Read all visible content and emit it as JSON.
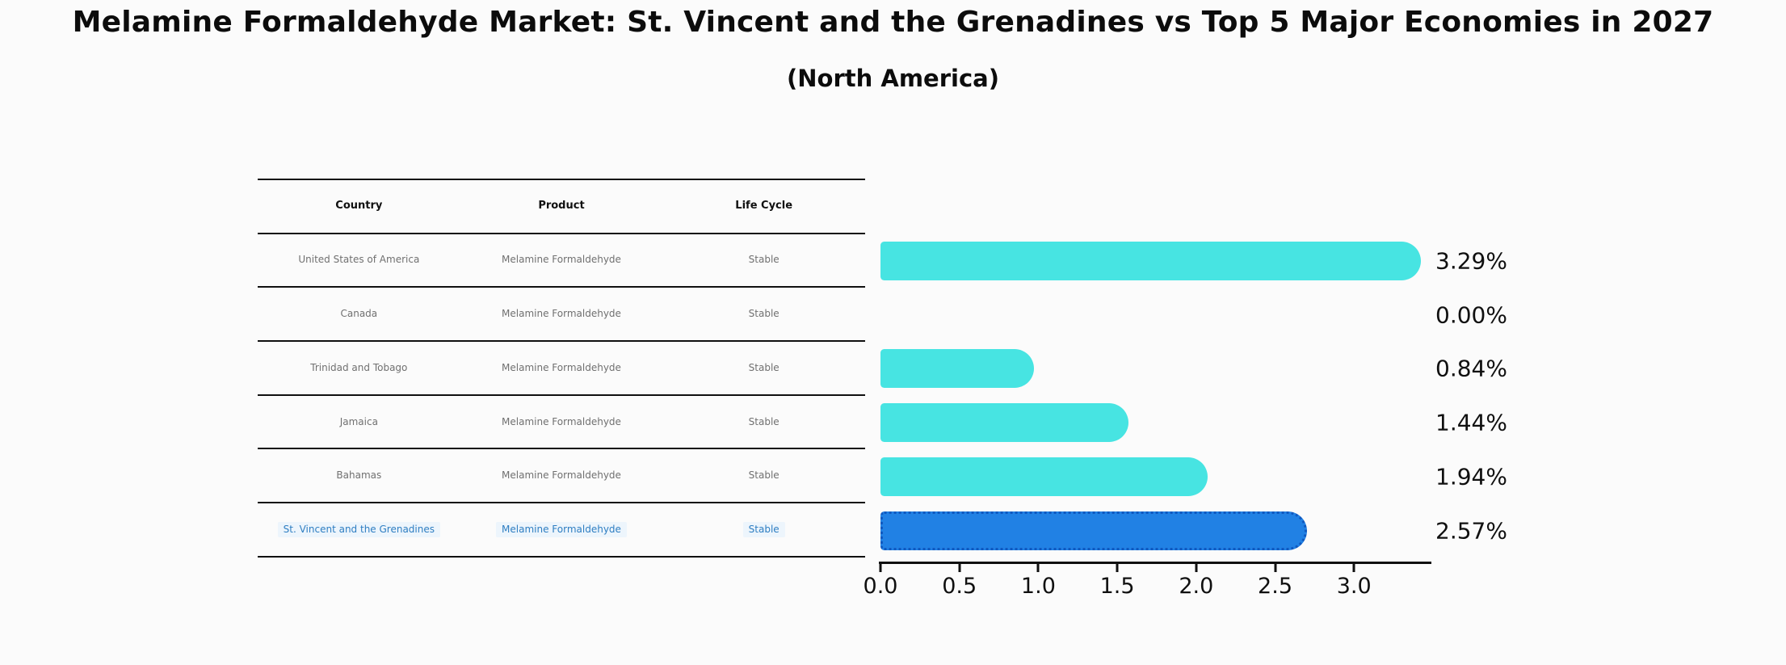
{
  "title": "Melamine Formaldehyde Market: St. Vincent and the Grenadines vs Top 5 Major Economies in 2027",
  "subtitle": "(North America)",
  "table": {
    "headers": [
      "Country",
      "Product",
      "Life Cycle"
    ],
    "rows": [
      {
        "country": "United States of America",
        "product": "Melamine Formaldehyde",
        "life_cycle": "Stable",
        "highlighted": false
      },
      {
        "country": "Canada",
        "product": "Melamine Formaldehyde",
        "life_cycle": "Stable",
        "highlighted": false
      },
      {
        "country": "Trinidad and Tobago",
        "product": "Melamine Formaldehyde",
        "life_cycle": "Stable",
        "highlighted": false
      },
      {
        "country": "Jamaica",
        "product": "Melamine Formaldehyde",
        "life_cycle": "Stable",
        "highlighted": false
      },
      {
        "country": "Bahamas",
        "product": "Melamine Formaldehyde",
        "life_cycle": "Stable",
        "highlighted": false
      },
      {
        "country": "St. Vincent and the Grenadines",
        "product": "Melamine Formaldehyde",
        "life_cycle": "Stable",
        "highlighted": true
      }
    ]
  },
  "chart_data": {
    "type": "bar",
    "orientation": "horizontal",
    "title": "Melamine Formaldehyde Market: St. Vincent and the Grenadines vs Top 5 Major Economies in 2027",
    "subtitle": "(North America)",
    "categories": [
      "United States of America",
      "Canada",
      "Trinidad and Tobago",
      "Jamaica",
      "Bahamas",
      "St. Vincent and the Grenadines"
    ],
    "values": [
      3.29,
      0.0,
      0.84,
      1.44,
      1.94,
      2.57
    ],
    "labels": [
      "3.29%",
      "0.00%",
      "0.84%",
      "1.44%",
      "1.94%",
      "2.57%"
    ],
    "xlabel": "",
    "ylabel": "",
    "xlim": [
      0,
      3.49
    ],
    "x_ticks": [
      "0.0",
      "0.5",
      "1.0",
      "1.5",
      "2.0",
      "2.5",
      "3.0"
    ],
    "grid": false,
    "legend": false,
    "highlight_index": 5,
    "colors": {
      "bar": "#47e4e2",
      "highlight_bar": "#2181e4",
      "highlight_edge": "#1059c0",
      "highlight_text": "#2e7ec2",
      "table_text": "#707070",
      "axis": "#101010"
    }
  }
}
